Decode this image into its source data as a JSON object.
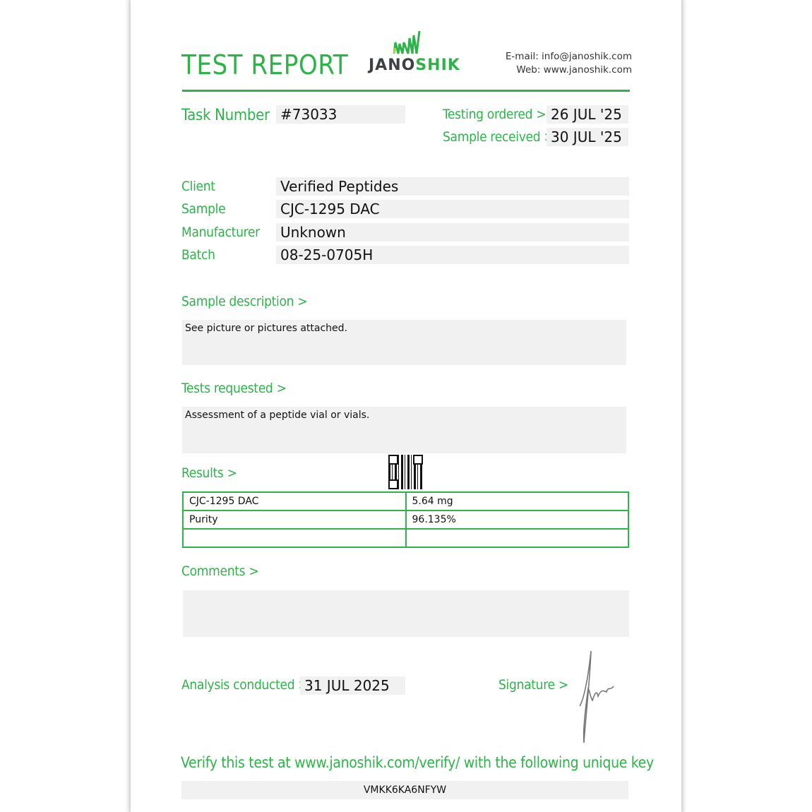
{
  "header": {
    "title": "TEST REPORT",
    "logo_text": "JANOSHIK",
    "email": "E-mail: info@janoshik.com",
    "web": "Web: www.janoshik.com"
  },
  "task": {
    "label": "Task Number",
    "value": "#73033"
  },
  "dates": {
    "ordered_label": "Testing ordered  >",
    "ordered_value": "26 JUL '25",
    "received_label": "Sample received >",
    "received_value": "30 JUL '25"
  },
  "fields": [
    {
      "label": "Client",
      "value": "Verified Peptides"
    },
    {
      "label": "Sample",
      "value": "CJC-1295 DAC"
    },
    {
      "label": "Manufacturer",
      "value": "Unknown"
    },
    {
      "label": "Batch",
      "value": "08-25-0705H"
    }
  ],
  "sample_description": {
    "label": "Sample description >",
    "text": "See picture or pictures attached."
  },
  "tests_requested": {
    "label": "Tests requested >",
    "text": "Assessment of a peptide vial or vials."
  },
  "results": {
    "label": "Results >",
    "rows": [
      [
        "CJC-1295 DAC",
        "5.64 mg"
      ],
      [
        "Purity",
        "96.135%"
      ],
      [
        "",
        ""
      ]
    ]
  },
  "comments": {
    "label": "Comments >",
    "text": ""
  },
  "analysis": {
    "label": "Analysis conducted >",
    "value": "31 JUL 2025"
  },
  "signature": {
    "label": "Signature >"
  },
  "verify": {
    "text": "Verify this test at www.janoshik.com/verify/ with the following unique key",
    "key": "VMKK6KA6NFYW"
  },
  "colors": {
    "accent": "#2db34a",
    "field_bg": "#f1f1f1"
  }
}
